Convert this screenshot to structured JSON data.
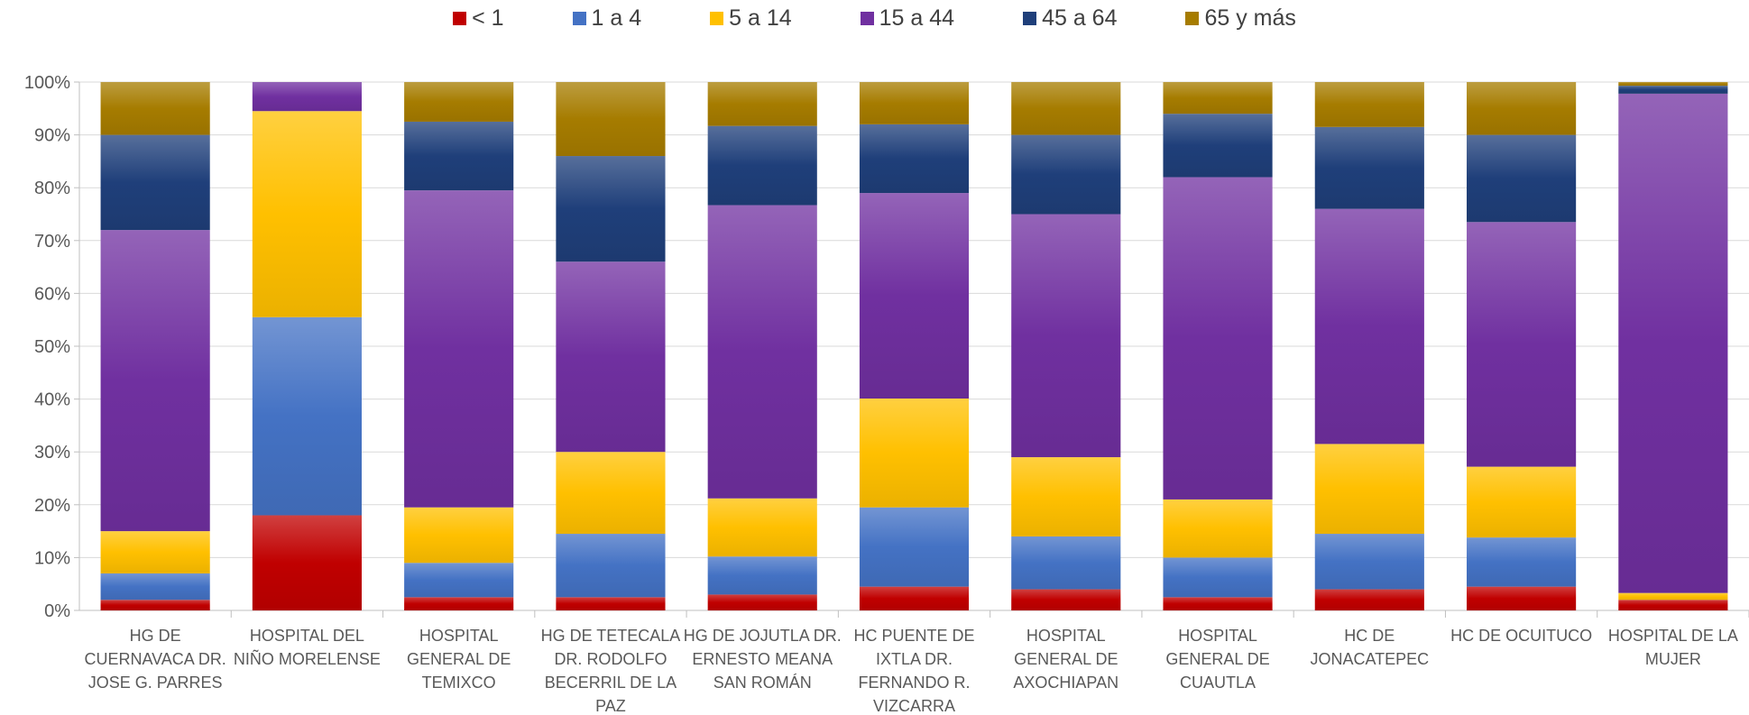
{
  "chart_data": {
    "type": "bar",
    "stacked": true,
    "percent_stacked": true,
    "title": "",
    "xlabel": "",
    "ylabel": "",
    "ylim": [
      0,
      100
    ],
    "y_ticks": [
      "0%",
      "10%",
      "20%",
      "30%",
      "40%",
      "50%",
      "60%",
      "70%",
      "80%",
      "90%",
      "100%"
    ],
    "grid": true,
    "legend_position": "top",
    "categories": [
      [
        "HG DE",
        "CUERNAVACA DR.",
        "JOSE G. PARRES"
      ],
      [
        "HOSPITAL DEL",
        "NIÑO MORELENSE"
      ],
      [
        "HOSPITAL",
        "GENERAL DE",
        "TEMIXCO"
      ],
      [
        "HG DE TETECALA",
        "DR. RODOLFO",
        "BECERRIL DE LA",
        "PAZ"
      ],
      [
        "HG DE JOJUTLA DR.",
        "ERNESTO MEANA",
        "SAN ROMÁN"
      ],
      [
        "HC PUENTE DE",
        "IXTLA DR.",
        "FERNANDO R.",
        "VIZCARRA"
      ],
      [
        "HOSPITAL",
        "GENERAL DE",
        "AXOCHIAPAN"
      ],
      [
        "HOSPITAL",
        "GENERAL DE",
        "CUAUTLA"
      ],
      [
        "HC DE",
        "JONACATEPEC"
      ],
      [
        "HC DE OCUITUCO"
      ],
      [
        "HOSPITAL DE LA",
        "MUJER"
      ]
    ],
    "series": [
      {
        "name": "< 1",
        "color": "#c00000",
        "values": [
          2,
          18,
          2.5,
          2.5,
          3,
          4.5,
          4,
          2.5,
          4,
          4.5,
          2
        ]
      },
      {
        "name": "1 a 4",
        "color": "#4472c4",
        "values": [
          5,
          37.5,
          6.5,
          12,
          7.2,
          15,
          10,
          7.5,
          10.5,
          9.3,
          0
        ]
      },
      {
        "name": "5 a 14",
        "color": "#ffc000",
        "values": [
          8,
          39,
          10.5,
          15.5,
          11,
          20.6,
          15,
          11,
          17,
          13.4,
          1.3
        ]
      },
      {
        "name": "15 a 44",
        "color": "#7030a0",
        "values": [
          57,
          5.5,
          60,
          36,
          55.5,
          38.9,
          46,
          61,
          44.5,
          46.3,
          94.5
        ]
      },
      {
        "name": "45 a 64",
        "color": "#1f3f7a",
        "values": [
          18,
          0,
          13,
          20,
          15,
          13,
          15,
          12,
          15.5,
          16.5,
          1.5
        ]
      },
      {
        "name": "65 y más",
        "color": "#a67c00",
        "values": [
          10,
          0,
          7.5,
          14,
          8.3,
          8,
          10,
          6,
          8.5,
          10,
          0.7
        ]
      }
    ]
  }
}
